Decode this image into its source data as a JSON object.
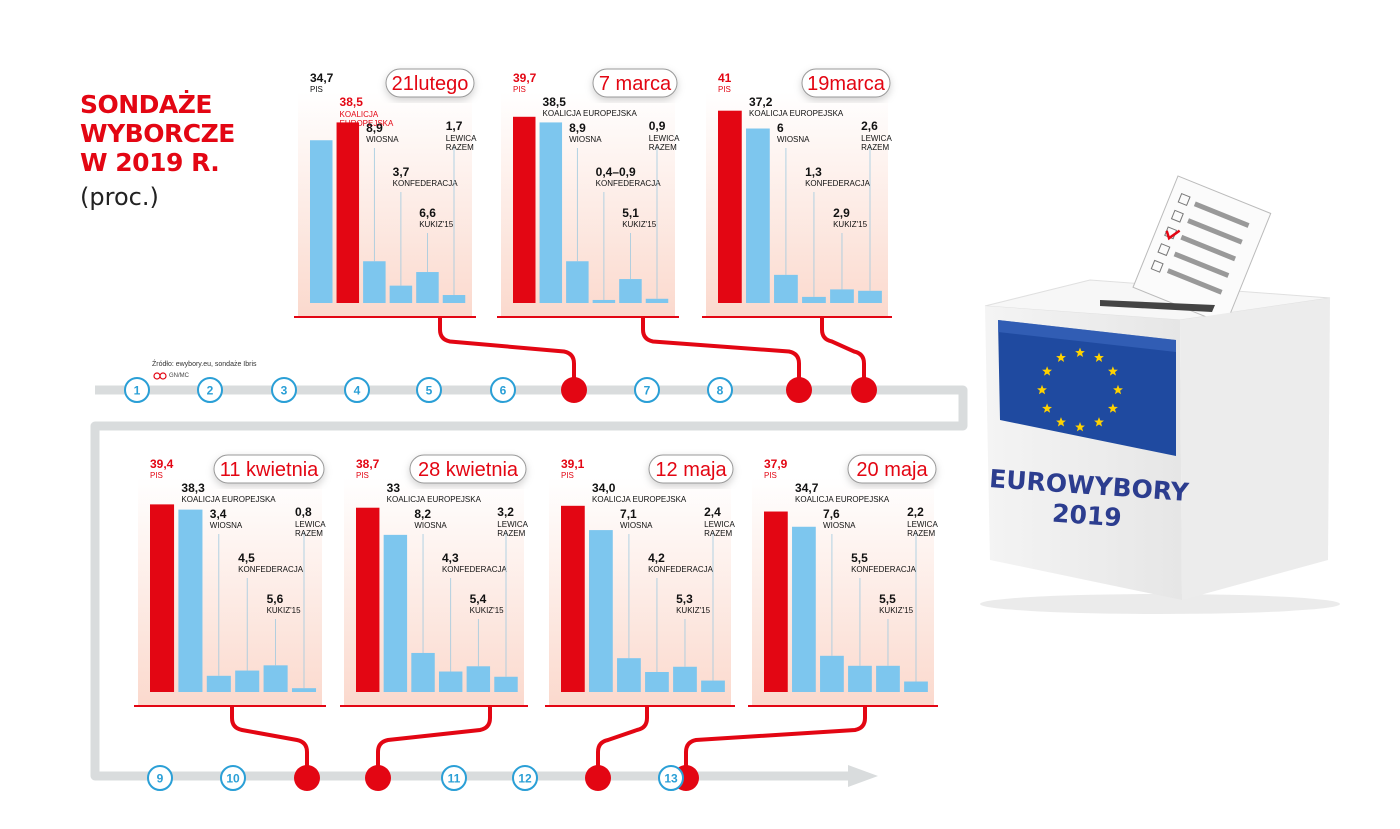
{
  "title_lines": [
    "SONDAŻE",
    "WYBORCZE",
    "W 2019 R."
  ],
  "subtitle": "(proc.)",
  "source": "Źródło: ewybory.eu, sondaże Ibris",
  "logo_text": "GN/MC",
  "ballot_box_label": [
    "EUROWYBORY",
    "2019"
  ],
  "colors": {
    "pis": "#e30613",
    "other": "#7dc6ee",
    "accent": "#e30613",
    "track": "#d9dcdd",
    "node_numbers": "#2a9fd6",
    "box_text": "#2c3d8f",
    "eu_flag": "#1f4aa0",
    "eu_stars": "#ffd200"
  },
  "timeline_labels": [
    "1",
    "2",
    "3",
    "4",
    "5",
    "6",
    "7",
    "8",
    "9",
    "10",
    "11",
    "12",
    "13"
  ],
  "chart_data": [
    {
      "type": "bar",
      "date": "21lutego",
      "categories": [
        "PIS",
        "KOALICJA EUROPEJSKA",
        "WIOSNA",
        "KONFEDERACJA",
        "KUKIZ'15",
        "LEWICA RAZEM"
      ],
      "values": [
        34.7,
        38.5,
        8.9,
        3.7,
        6.6,
        1.7
      ],
      "labels": [
        "34,7",
        "38,5",
        "8,9",
        "3,7",
        "6,6",
        "1,7"
      ],
      "highlight": 1
    },
    {
      "type": "bar",
      "date": "7 marca",
      "categories": [
        "PIS",
        "KOALICJA EUROPEJSKA",
        "WIOSNA",
        "KONFEDERACJA",
        "KUKIZ'15",
        "LEWICA RAZEM"
      ],
      "values": [
        39.7,
        38.5,
        8.9,
        0.65,
        5.1,
        0.9
      ],
      "labels": [
        "39,7",
        "38,5",
        "8,9",
        "0,4–0,9",
        "5,1",
        "0,9"
      ],
      "highlight": 0
    },
    {
      "type": "bar",
      "date": "19marca",
      "categories": [
        "PIS",
        "KOALICJA EUROPEJSKA",
        "WIOSNA",
        "KONFEDERACJA",
        "KUKIZ'15",
        "LEWICA RAZEM"
      ],
      "values": [
        41,
        37.2,
        6,
        1.3,
        2.9,
        2.6
      ],
      "labels": [
        "41",
        "37,2",
        "6",
        "1,3",
        "2,9",
        "2,6"
      ],
      "highlight": 0
    },
    {
      "type": "bar",
      "date": "11 kwietnia",
      "categories": [
        "PIS",
        "KOALICJA EUROPEJSKA",
        "WIOSNA",
        "KONFEDERACJA",
        "KUKIZ'15",
        "LEWICA RAZEM"
      ],
      "values": [
        39.4,
        38.3,
        3.4,
        4.5,
        5.6,
        0.8
      ],
      "labels": [
        "39,4",
        "38,3",
        "3,4",
        "4,5",
        "5,6",
        "0,8"
      ],
      "highlight": 0
    },
    {
      "type": "bar",
      "date": "28 kwietnia",
      "categories": [
        "PIS",
        "KOALICJA EUROPEJSKA",
        "WIOSNA",
        "KONFEDERACJA",
        "KUKIZ'15",
        "LEWICA RAZEM"
      ],
      "values": [
        38.7,
        33,
        8.2,
        4.3,
        5.4,
        3.2
      ],
      "labels": [
        "38,7",
        "33",
        "8,2",
        "4,3",
        "5,4",
        "3,2"
      ],
      "highlight": 0
    },
    {
      "type": "bar",
      "date": "12 maja",
      "categories": [
        "PIS",
        "KOALICJA EUROPEJSKA",
        "WIOSNA",
        "KONFEDERACJA",
        "KUKIZ'15",
        "LEWICA RAZEM"
      ],
      "values": [
        39.1,
        34.0,
        7.1,
        4.2,
        5.3,
        2.4
      ],
      "labels": [
        "39,1",
        "34,0",
        "7,1",
        "4,2",
        "5,3",
        "2,4"
      ],
      "highlight": 0
    },
    {
      "type": "bar",
      "date": "20 maja",
      "categories": [
        "PIS",
        "KOALICJA EUROPEJSKA",
        "WIOSNA",
        "KONFEDERACJA",
        "KUKIZ'15",
        "LEWICA RAZEM"
      ],
      "values": [
        37.9,
        34.7,
        7.6,
        5.5,
        5.5,
        2.2
      ],
      "labels": [
        "37,9",
        "34,7",
        "7,6",
        "5,5",
        "5,5",
        "2,2"
      ],
      "highlight": 0
    }
  ]
}
